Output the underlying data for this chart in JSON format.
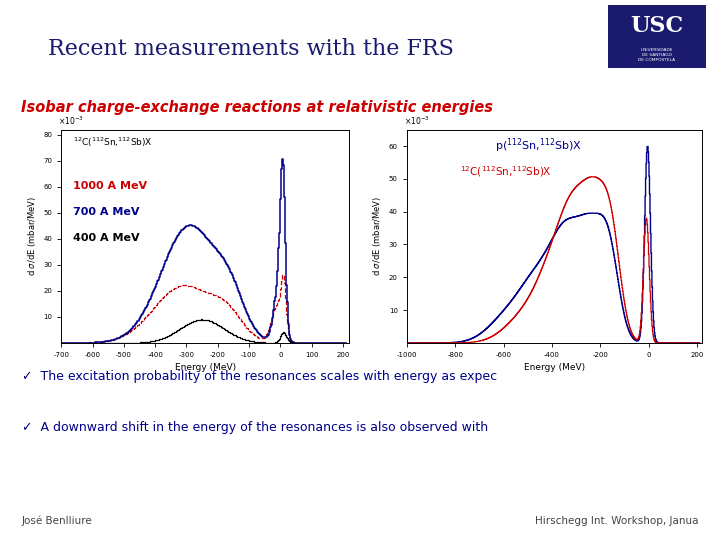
{
  "title": "Recent measurements with the FRS",
  "subtitle": "Isobar charge-exchange reactions at relativistic energies",
  "subtitle_color": "#cc0000",
  "bullet1": "✓  The excitation probability of the resonances scales with energy as expec",
  "bullet2": "✓  A downward shift in the energy of the resonances is also observed with",
  "bullet_color": "#00008B",
  "footer_left": "José Benlliure",
  "footer_right": "Hirschegg Int. Workshop, Janua",
  "footer_color": "#444444",
  "bg_color": "#ffffff",
  "title_color": "#1a1a6e",
  "plot1_colors": [
    "#cc0000",
    "#00008B",
    "#000000"
  ],
  "plot2_colors": [
    "#00008B",
    "#cc0000"
  ],
  "usc_bg": "#1a1a6e",
  "separator_color1": "#888899",
  "separator_color2": "#555577"
}
